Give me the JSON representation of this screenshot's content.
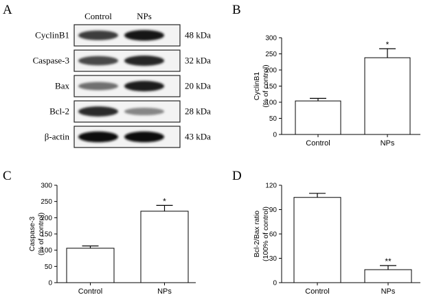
{
  "panels": {
    "A": "A",
    "B": "B",
    "C": "C",
    "D": "D"
  },
  "blot": {
    "columns": [
      "Control",
      "NPs"
    ],
    "rows": [
      {
        "protein": "CyclinB1",
        "size": "48 kDa",
        "intensity": [
          0.78,
          0.95
        ]
      },
      {
        "protein": "Caspase-3",
        "size": "32 kDa",
        "intensity": [
          0.72,
          0.88
        ]
      },
      {
        "protein": "Bax",
        "size": "20 kDa",
        "intensity": [
          0.55,
          0.92
        ]
      },
      {
        "protein": "Bcl-2",
        "size": "28 kDa",
        "intensity": [
          0.85,
          0.45
        ]
      },
      {
        "protein": "β-actin",
        "size": "43 kDa",
        "intensity": [
          0.98,
          0.98
        ]
      }
    ]
  },
  "chart_data": [
    {
      "panel": "B",
      "type": "bar",
      "categories": [
        "Control",
        "NPs"
      ],
      "values": [
        104,
        238
      ],
      "errors": [
        8,
        28
      ],
      "significance": [
        "",
        "*"
      ],
      "ylabel_line1": "CyclinB1",
      "ylabel_line2": "(% of control)",
      "ylim": [
        0,
        300
      ],
      "yticks": [
        0,
        50,
        100,
        150,
        200,
        250,
        300
      ],
      "grid": false
    },
    {
      "panel": "C",
      "type": "bar",
      "categories": [
        "Control",
        "NPs"
      ],
      "values": [
        106,
        220
      ],
      "errors": [
        7,
        18
      ],
      "significance": [
        "",
        "*"
      ],
      "ylabel_line1": "Caspase-3",
      "ylabel_line2": "(% of control)",
      "ylim": [
        0,
        300
      ],
      "yticks": [
        0,
        50,
        100,
        150,
        200,
        250,
        300
      ],
      "grid": false
    },
    {
      "panel": "D",
      "type": "bar",
      "categories": [
        "Control",
        "NPs"
      ],
      "values": [
        105,
        16
      ],
      "errors": [
        5,
        5
      ],
      "significance": [
        "",
        "**"
      ],
      "ylabel_line1": "Bcl-2/Bax ratio",
      "ylabel_line2": "(100% of control)",
      "ylim": [
        0,
        120
      ],
      "yticks": [
        0,
        30,
        60,
        90,
        120
      ],
      "grid": false
    }
  ]
}
